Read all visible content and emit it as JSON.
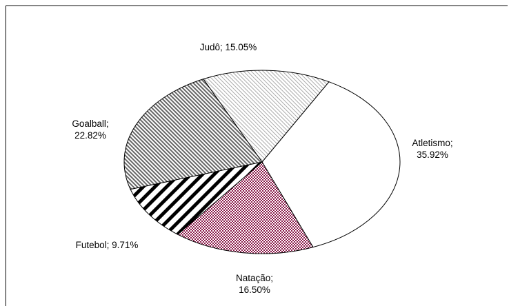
{
  "chart_data": {
    "type": "pie",
    "slices": [
      {
        "label": "Atletismo",
        "value": 35.92,
        "label_text": "Atletismo; 35.92%",
        "label_lines": [
          "Atletismo;",
          "35.92%"
        ],
        "pattern": "none",
        "color": "#ffffff"
      },
      {
        "label": "Natação",
        "value": 16.5,
        "label_text": "Natação; 16.50%",
        "label_lines": [
          "Natação;",
          "16.50%"
        ],
        "pattern": "checker",
        "color": "#8b1a4a"
      },
      {
        "label": "Futebol",
        "value": 9.71,
        "label_text": "Futebol; 9.71%",
        "label_lines": [
          "Futebol; 9.71%"
        ],
        "pattern": "thick-diagonal",
        "color": "#000000"
      },
      {
        "label": "Goalball",
        "value": 22.82,
        "label_text": "Goalball; 22.82%",
        "label_lines": [
          "Goalball;",
          "22.82%"
        ],
        "pattern": "fine-diagonal",
        "color": "#555555"
      },
      {
        "label": "Judô",
        "value": 15.05,
        "label_text": "Judô; 15.05%",
        "label_lines": [
          "Judô; 15.05%"
        ],
        "pattern": "light-diagonal",
        "color": "#aaaaaa"
      }
    ],
    "legend": "none",
    "border_color": "#000000"
  }
}
